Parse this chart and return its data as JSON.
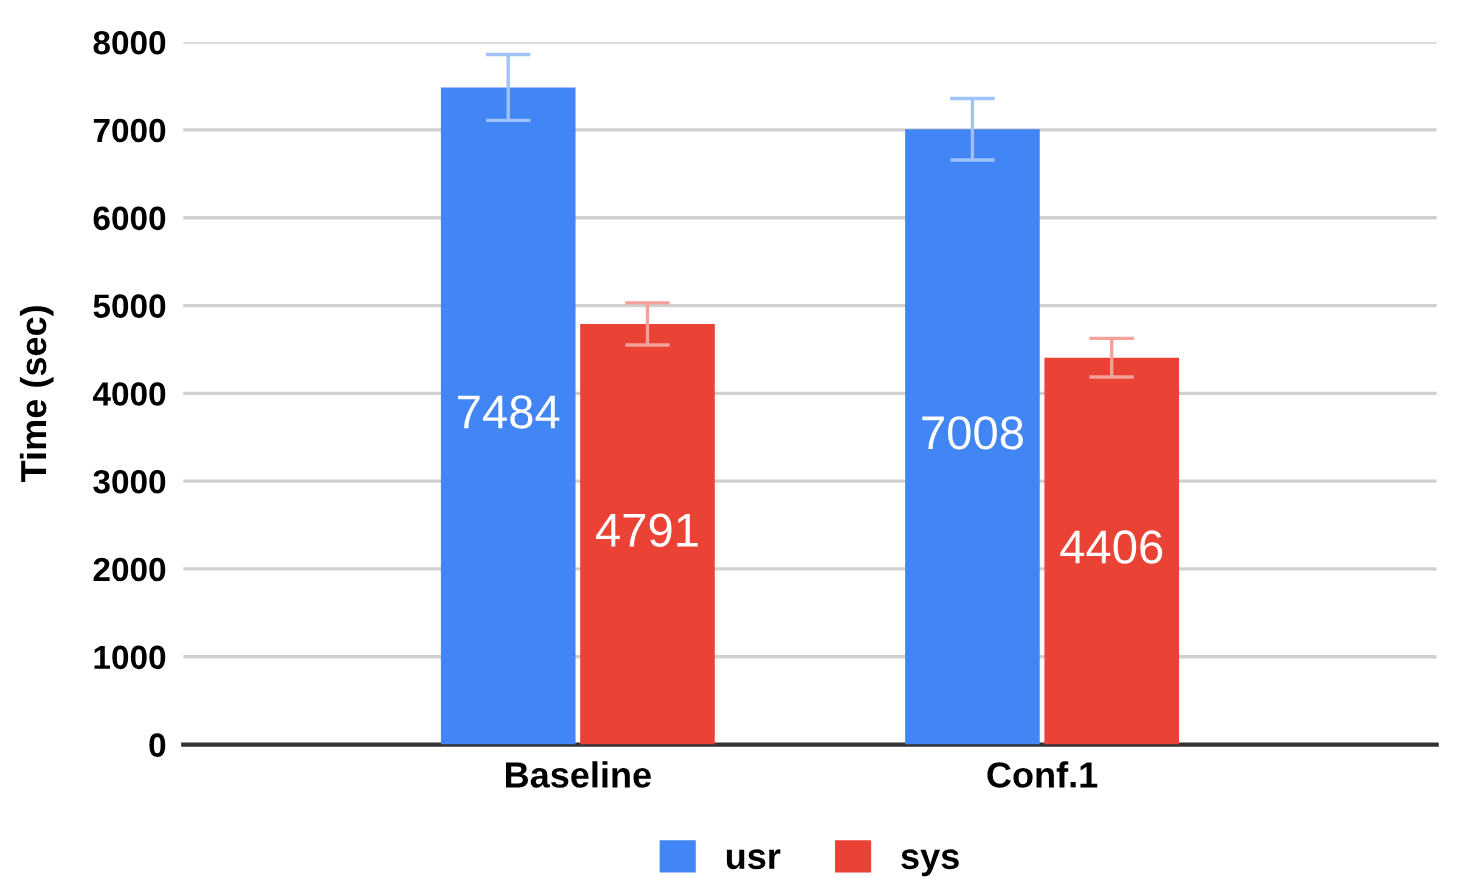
{
  "chart_data": {
    "type": "bar",
    "ylabel": "Time (sec)",
    "categories": [
      "Baseline",
      "Conf.1"
    ],
    "series": [
      {
        "name": "usr",
        "color": "#4285f4",
        "values": [
          7484,
          7008
        ],
        "errors": [
          375,
          350
        ]
      },
      {
        "name": "sys",
        "color": "#ea4335",
        "values": [
          4791,
          4406
        ],
        "errors": [
          240,
          220
        ]
      }
    ],
    "ylim": [
      0,
      8000
    ],
    "yticks": [
      0,
      1000,
      2000,
      3000,
      4000,
      5000,
      6000,
      7000,
      8000
    ],
    "grid": "y",
    "legend": "bottom",
    "data_labels": true
  }
}
